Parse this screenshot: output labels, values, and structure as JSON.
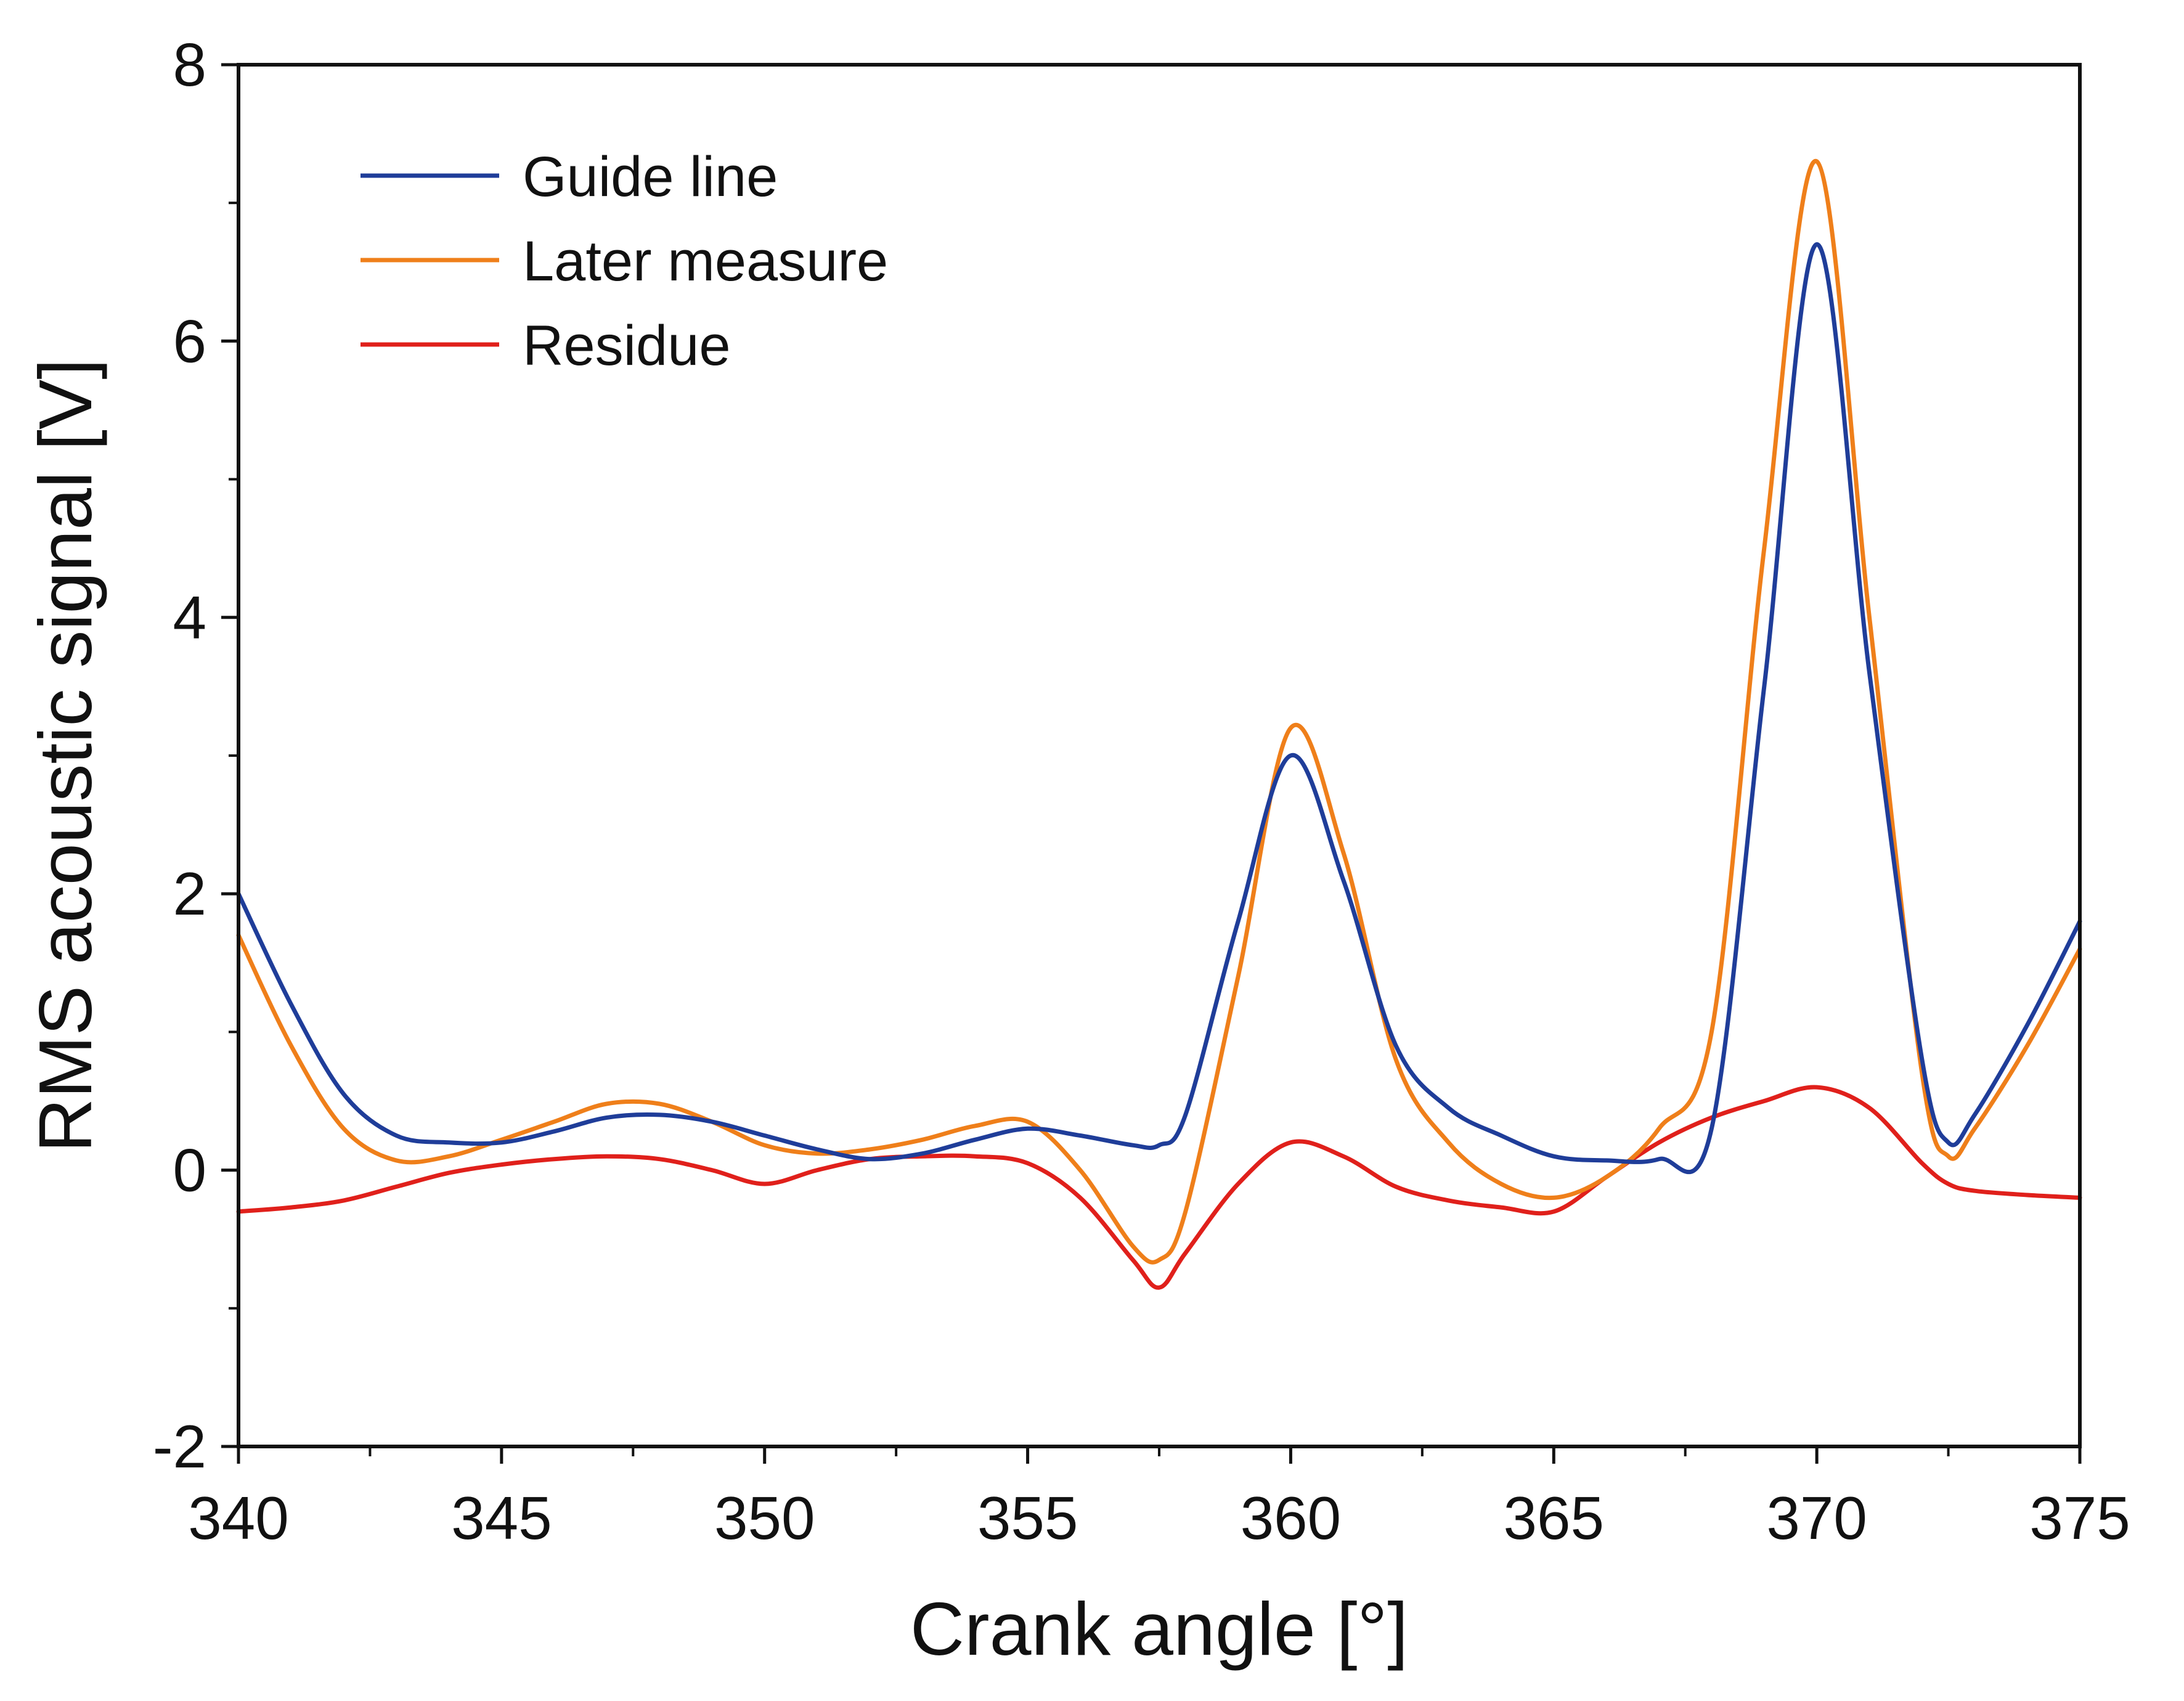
{
  "chart_data": {
    "type": "line",
    "title": "",
    "xlabel": "Crank angle [°]",
    "ylabel": "RMS acoustic signal [V]",
    "xlim": [
      340,
      375
    ],
    "ylim": [
      -2,
      8
    ],
    "x_ticks": [
      340,
      345,
      350,
      355,
      360,
      365,
      370,
      375
    ],
    "y_ticks": [
      -2,
      0,
      2,
      4,
      6,
      8
    ],
    "x_tick_labels": [
      "340",
      "345",
      "350",
      "355",
      "360",
      "365",
      "370",
      "375"
    ],
    "y_tick_labels": [
      "-2",
      "0",
      "2",
      "4",
      "6",
      "8"
    ],
    "grid": false,
    "legend_position": "top-left",
    "series": [
      {
        "name": "Guide line",
        "color": "#1f3d99",
        "points": [
          [
            340,
            2.0
          ],
          [
            341,
            1.2
          ],
          [
            342,
            0.55
          ],
          [
            343,
            0.25
          ],
          [
            344,
            0.2
          ],
          [
            345,
            0.2
          ],
          [
            346,
            0.28
          ],
          [
            347,
            0.38
          ],
          [
            348,
            0.4
          ],
          [
            349,
            0.35
          ],
          [
            350,
            0.25
          ],
          [
            351,
            0.15
          ],
          [
            352,
            0.08
          ],
          [
            353,
            0.12
          ],
          [
            354,
            0.22
          ],
          [
            355,
            0.3
          ],
          [
            356,
            0.25
          ],
          [
            357,
            0.18
          ],
          [
            357.5,
            0.18
          ],
          [
            358,
            0.4
          ],
          [
            359,
            1.8
          ],
          [
            360,
            3.0
          ],
          [
            361,
            2.1
          ],
          [
            362,
            0.9
          ],
          [
            363,
            0.45
          ],
          [
            364,
            0.25
          ],
          [
            365,
            0.1
          ],
          [
            366,
            0.07
          ],
          [
            367,
            0.08
          ],
          [
            368,
            0.3
          ],
          [
            369,
            3.5
          ],
          [
            370,
            6.7
          ],
          [
            371,
            3.6
          ],
          [
            372,
            0.8
          ],
          [
            372.5,
            0.2
          ],
          [
            373,
            0.4
          ],
          [
            374,
            1.05
          ],
          [
            375,
            1.8
          ]
        ]
      },
      {
        "name": "Later measure",
        "color": "#ef7f1a",
        "points": [
          [
            340,
            1.7
          ],
          [
            341,
            0.9
          ],
          [
            342,
            0.3
          ],
          [
            343,
            0.07
          ],
          [
            344,
            0.1
          ],
          [
            345,
            0.22
          ],
          [
            346,
            0.35
          ],
          [
            347,
            0.48
          ],
          [
            348,
            0.48
          ],
          [
            349,
            0.35
          ],
          [
            350,
            0.18
          ],
          [
            351,
            0.12
          ],
          [
            352,
            0.15
          ],
          [
            353,
            0.22
          ],
          [
            354,
            0.32
          ],
          [
            355,
            0.35
          ],
          [
            356,
            0.0
          ],
          [
            357,
            -0.55
          ],
          [
            357.5,
            -0.65
          ],
          [
            358,
            -0.3
          ],
          [
            359,
            1.4
          ],
          [
            360,
            3.2
          ],
          [
            361,
            2.3
          ],
          [
            362,
            0.8
          ],
          [
            363,
            0.2
          ],
          [
            364,
            -0.1
          ],
          [
            365,
            -0.2
          ],
          [
            366,
            -0.05
          ],
          [
            367,
            0.3
          ],
          [
            368,
            1.0
          ],
          [
            369,
            4.5
          ],
          [
            370,
            7.3
          ],
          [
            371,
            4.0
          ],
          [
            372,
            0.7
          ],
          [
            372.5,
            0.1
          ],
          [
            373,
            0.3
          ],
          [
            374,
            0.9
          ],
          [
            375,
            1.6
          ]
        ]
      },
      {
        "name": "Residue",
        "color": "#e0201b",
        "points": [
          [
            340,
            -0.3
          ],
          [
            341,
            -0.27
          ],
          [
            342,
            -0.22
          ],
          [
            343,
            -0.12
          ],
          [
            344,
            -0.02
          ],
          [
            345,
            0.04
          ],
          [
            346,
            0.08
          ],
          [
            347,
            0.1
          ],
          [
            348,
            0.08
          ],
          [
            349,
            0.0
          ],
          [
            350,
            -0.1
          ],
          [
            351,
            0.0
          ],
          [
            352,
            0.08
          ],
          [
            353,
            0.1
          ],
          [
            354,
            0.1
          ],
          [
            355,
            0.05
          ],
          [
            356,
            -0.2
          ],
          [
            357,
            -0.65
          ],
          [
            357.5,
            -0.85
          ],
          [
            358,
            -0.6
          ],
          [
            359,
            -0.1
          ],
          [
            360,
            0.2
          ],
          [
            361,
            0.1
          ],
          [
            362,
            -0.12
          ],
          [
            363,
            -0.22
          ],
          [
            364,
            -0.27
          ],
          [
            365,
            -0.3
          ],
          [
            366,
            -0.05
          ],
          [
            367,
            0.2
          ],
          [
            368,
            0.38
          ],
          [
            369,
            0.5
          ],
          [
            370,
            0.6
          ],
          [
            371,
            0.45
          ],
          [
            372,
            0.05
          ],
          [
            372.5,
            -0.1
          ],
          [
            373,
            -0.15
          ],
          [
            374,
            -0.18
          ],
          [
            375,
            -0.2
          ]
        ]
      }
    ]
  }
}
